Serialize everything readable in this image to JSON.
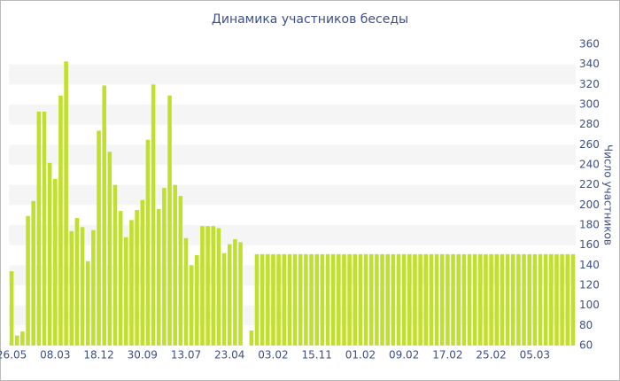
{
  "chart_data": {
    "type": "bar",
    "title": "Динамика участников беседы",
    "y_label": "Число участников",
    "categories": [
      "26.05",
      null,
      null,
      null,
      null,
      null,
      null,
      null,
      "08.03",
      null,
      null,
      null,
      null,
      null,
      null,
      null,
      "18.12",
      null,
      null,
      null,
      null,
      null,
      null,
      null,
      "30.09",
      null,
      null,
      null,
      null,
      null,
      null,
      null,
      "13.07",
      null,
      null,
      null,
      null,
      null,
      null,
      null,
      "23.04",
      null,
      null,
      null,
      null,
      null,
      null,
      null,
      "03.02",
      null,
      null,
      null,
      null,
      null,
      null,
      null,
      "15.11",
      null,
      null,
      null,
      null,
      null,
      null,
      null,
      "01.02",
      null,
      null,
      null,
      null,
      null,
      null,
      null,
      "09.02",
      null,
      null,
      null,
      null,
      null,
      null,
      null,
      "17.02",
      null,
      null,
      null,
      null,
      null,
      null,
      null,
      "25.02",
      null,
      null,
      null,
      null,
      null,
      null,
      null,
      "05.03",
      null,
      null,
      null,
      null,
      null,
      null,
      null
    ],
    "values": [
      134,
      70,
      74,
      189,
      204,
      293,
      293,
      242,
      226,
      309,
      343,
      174,
      187,
      178,
      144,
      175,
      274,
      319,
      253,
      220,
      194,
      168,
      185,
      195,
      205,
      265,
      320,
      196,
      217,
      309,
      220,
      209,
      167,
      140,
      150,
      179,
      179,
      179,
      177,
      152,
      161,
      166,
      163,
      null,
      75,
      151,
      151,
      151,
      151,
      151,
      151,
      151,
      151,
      151,
      151,
      151,
      151,
      151,
      151,
      151,
      151,
      151,
      151,
      151,
      151,
      151,
      151,
      151,
      151,
      151,
      151,
      151,
      151,
      151,
      151,
      151,
      151,
      151,
      151,
      151,
      151,
      151,
      151,
      151,
      151,
      151,
      151,
      151,
      151,
      151,
      151,
      151,
      151,
      151,
      151,
      151,
      151,
      151,
      151,
      151,
      151,
      151,
      151,
      151
    ],
    "color": "#c0e02c",
    "ylim": [
      60,
      360
    ],
    "yticks": [
      60,
      80,
      100,
      120,
      140,
      160,
      180,
      200,
      220,
      240,
      260,
      280,
      300,
      320,
      340,
      360
    ],
    "grid": true
  }
}
